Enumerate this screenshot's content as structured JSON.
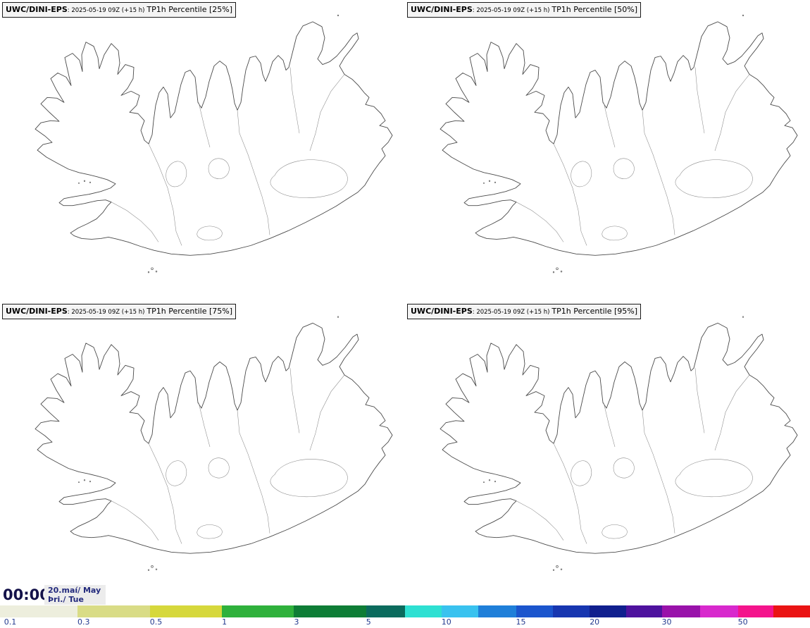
{
  "panels": [
    {
      "model": "UWC/DINI-EPS",
      "run": ": 2025-05-19 09Z (+15 h)",
      "title": "TP1h Percentile [25%]"
    },
    {
      "model": "UWC/DINI-EPS",
      "run": ": 2025-05-19 09Z (+15 h)",
      "title": "TP1h Percentile [50%]"
    },
    {
      "model": "UWC/DINI-EPS",
      "run": ": 2025-05-19 09Z (+15 h)",
      "title": "TP1h Percentile [75%]"
    },
    {
      "model": "UWC/DINI-EPS",
      "run": ": 2025-05-19 09Z (+15 h)",
      "title": "TP1h Percentile [95%]"
    }
  ],
  "footer": {
    "time": "00:00",
    "date": "20.maí/ May",
    "weekday": "Þri./ Tue"
  },
  "colorbar": {
    "boundaries": [
      0,
      0.0957,
      0.185,
      0.274,
      0.363,
      0.452,
      0.5,
      0.545,
      0.59,
      0.637,
      0.683,
      0.728,
      0.773,
      0.817,
      0.864,
      0.911,
      0.955,
      1.0
    ],
    "colors": [
      "#edeedd",
      "#d9dc86",
      "#d6d83c",
      "#2fb13c",
      "#0e7d36",
      "#0b6b5d",
      "#2ee0d2",
      "#39c2ef",
      "#1f7fd9",
      "#1b55cd",
      "#1736b0",
      "#101f8e",
      "#4e129e",
      "#9912aa",
      "#d829cd",
      "#f4148c",
      "#ea1414"
    ],
    "ticks": [
      {
        "label": "0.1",
        "x": 0.005
      },
      {
        "label": "0.3",
        "x": 0.0957
      },
      {
        "label": "0.5",
        "x": 0.185
      },
      {
        "label": "1",
        "x": 0.274
      },
      {
        "label": "3",
        "x": 0.363
      },
      {
        "label": "5",
        "x": 0.452
      },
      {
        "label": "10",
        "x": 0.545
      },
      {
        "label": "15",
        "x": 0.637
      },
      {
        "label": "20",
        "x": 0.728
      },
      {
        "label": "30",
        "x": 0.817
      },
      {
        "label": "50",
        "x": 0.911
      }
    ]
  }
}
